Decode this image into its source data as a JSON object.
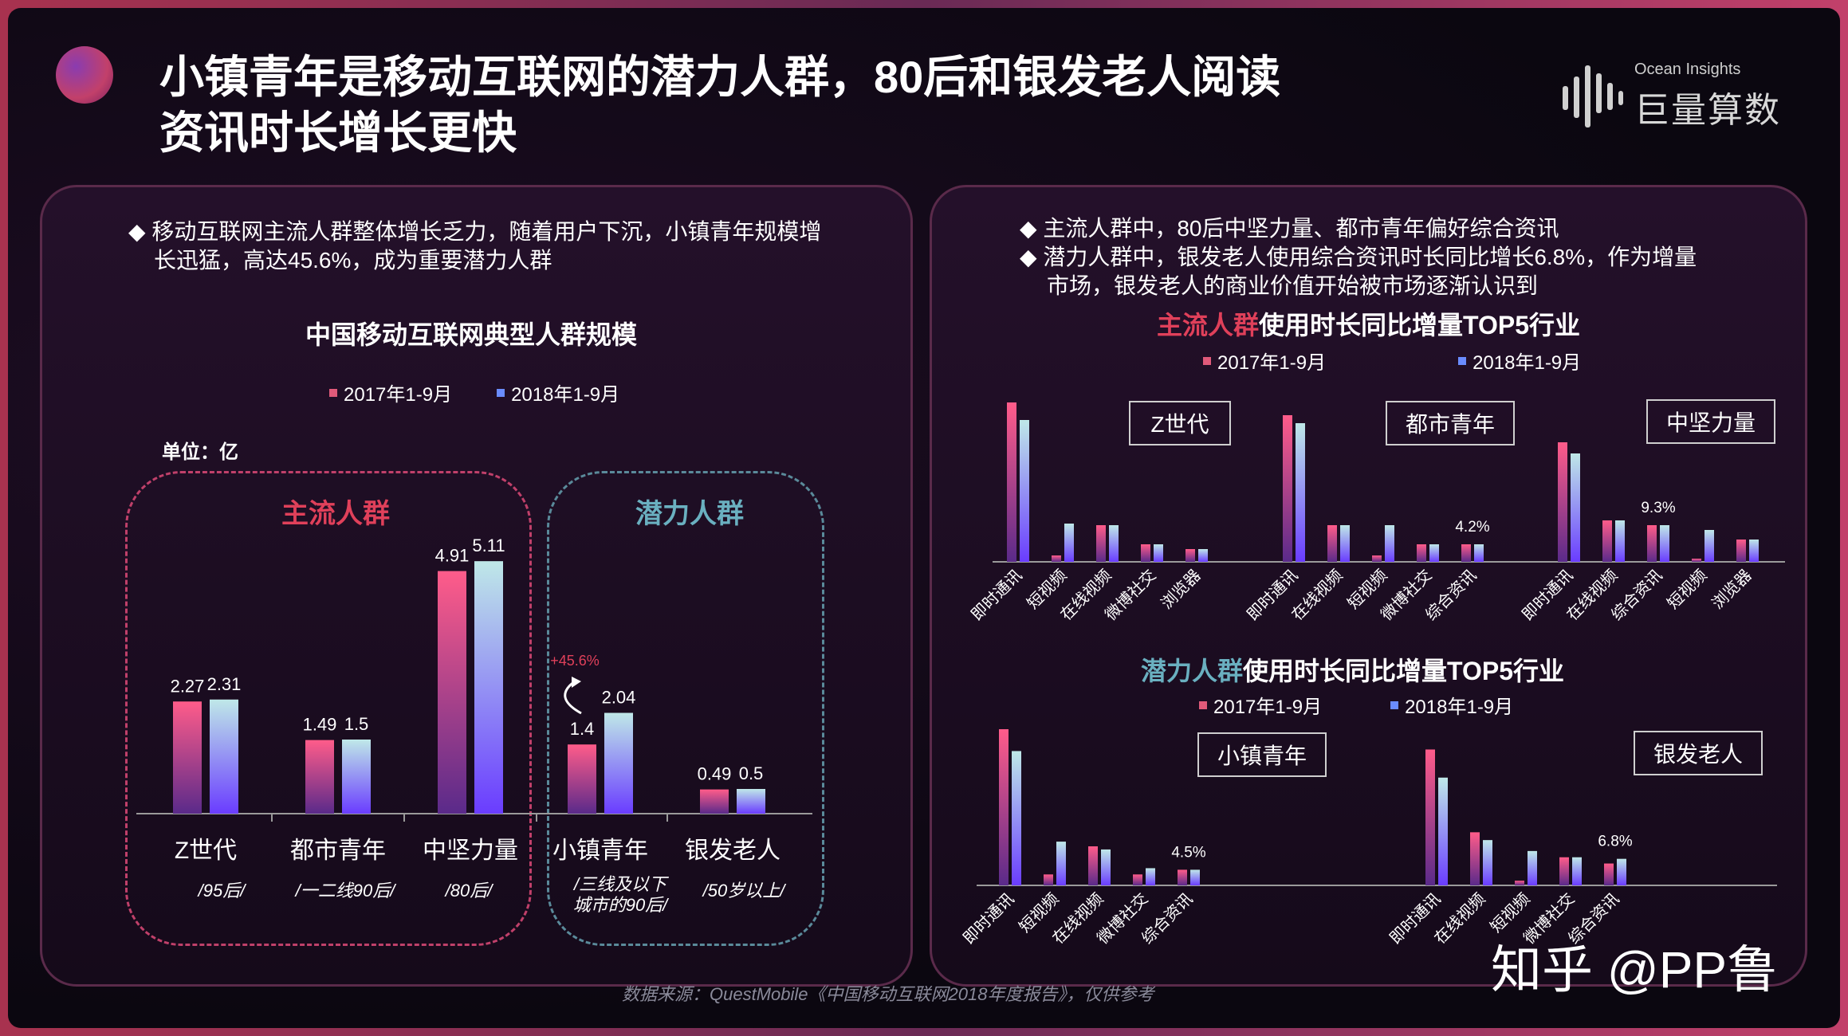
{
  "header": {
    "title_line1": "小镇青年是移动互联网的潜力人群，80后和银发老人阅读",
    "title_line2": "资讯时长增长更快",
    "logo_en": "Ocean Insights",
    "logo_cn": "巨量算数",
    "accent": "#e0405a"
  },
  "left": {
    "bullet_line1": "◆ 移动互联网主流人群整体增长乏力，随着用户下沉，小镇青年规模增",
    "bullet_line2": "长迅猛，高达45.6%，成为重要潜力人群",
    "chart_title": "中国移动互联网典型人群规模",
    "legend_a": "2017年1-9月",
    "legend_b": "2018年1-9月",
    "unit": "单位：亿",
    "group_main": "主流人群",
    "group_potential": "潜力人群",
    "growth_note": "+45.6%",
    "subs": [
      "/95后/",
      "/一二线90后/",
      "/80后/",
      "/三线及以下",
      "城市的90后/",
      "/50岁以上/"
    ]
  },
  "right": {
    "bullet_line1": "◆ 主流人群中，80后中坚力量、都市青年偏好综合资讯",
    "bullet_line2": "◆ 潜力人群中，银发老人使用综合资讯时长同比增长6.8%，作为增量",
    "bullet_line3": "市场，银发老人的商业价值开始被市场逐渐认识到",
    "top_title_hl": "主流人群",
    "top_title_rest": "使用时长同比增量TOP5行业",
    "bottom_title_hl": "潜力人群",
    "bottom_title_rest": "使用时长同比增量TOP5行业",
    "legend_a": "2017年1-9月",
    "legend_b": "2018年1-9月"
  },
  "footer": {
    "source": "数据来源：QuestMobile《中国移动互联网2018年度报告》，仅供参考",
    "watermark": "知乎 @PP鲁"
  },
  "chart_data": [
    {
      "type": "bar",
      "title": "中国移动互联网典型人群规模",
      "ylabel": "单位：亿",
      "categories": [
        "Z世代",
        "都市青年",
        "中坚力量",
        "小镇青年",
        "银发老人"
      ],
      "series": [
        {
          "name": "2017年1-9月",
          "values": [
            2.27,
            1.49,
            4.91,
            1.4,
            0.49
          ]
        },
        {
          "name": "2018年1-9月",
          "values": [
            2.31,
            1.5,
            5.11,
            2.04,
            0.5
          ]
        }
      ],
      "annotations": [
        {
          "category": "小镇青年",
          "text": "+45.6%"
        }
      ],
      "legend": "top-center",
      "grid": false
    },
    {
      "type": "bar",
      "title": "主流人群使用时长同比增量TOP5行业",
      "legend": "top-center",
      "groups": [
        {
          "name": "Z世代",
          "categories": [
            "即时通讯",
            "短视频",
            "在线视频",
            "微博社交",
            "浏览器"
          ],
          "series": [
            {
              "name": "2017年1-9月",
              "values": [
                100,
                4,
                23,
                11,
                8
              ]
            },
            {
              "name": "2018年1-9月",
              "values": [
                89,
                24,
                23,
                11,
                8
              ]
            }
          ]
        },
        {
          "name": "都市青年",
          "categories": [
            "即时通讯",
            "在线视频",
            "短视频",
            "微博社交",
            "综合资讯"
          ],
          "series": [
            {
              "name": "2017年1-9月",
              "values": [
                92,
                23,
                4,
                11,
                11
              ]
            },
            {
              "name": "2018年1-9月",
              "values": [
                87,
                23,
                23,
                11,
                11
              ]
            }
          ],
          "annotations": [
            {
              "category": "综合资讯",
              "text": "4.2%"
            }
          ]
        },
        {
          "name": "中坚力量",
          "categories": [
            "即时通讯",
            "在线视频",
            "综合资讯",
            "短视频",
            "浏览器"
          ],
          "series": [
            {
              "name": "2017年1-9月",
              "values": [
                75,
                26,
                23,
                2,
                14
              ]
            },
            {
              "name": "2018年1-9月",
              "values": [
                68,
                26,
                23,
                20,
                14
              ]
            }
          ],
          "annotations": [
            {
              "category": "综合资讯",
              "text": "9.3%"
            }
          ]
        }
      ]
    },
    {
      "type": "bar",
      "title": "潜力人群使用时长同比增量TOP5行业",
      "legend": "top-center",
      "groups": [
        {
          "name": "小镇青年",
          "categories": [
            "即时通讯",
            "短视频",
            "在线视频",
            "微博社交",
            "综合资讯"
          ],
          "series": [
            {
              "name": "2017年1-9月",
              "values": [
                100,
                7,
                25,
                7,
                10
              ]
            },
            {
              "name": "2018年1-9月",
              "values": [
                86,
                28,
                23,
                11,
                10
              ]
            }
          ],
          "annotations": [
            {
              "category": "综合资讯",
              "text": "4.5%"
            }
          ]
        },
        {
          "name": "银发老人",
          "categories": [
            "即时通讯",
            "在线视频",
            "短视频",
            "微博社交",
            "综合资讯"
          ],
          "series": [
            {
              "name": "2017年1-9月",
              "values": [
                87,
                34,
                3,
                18,
                14
              ]
            },
            {
              "name": "2018年1-9月",
              "values": [
                69,
                29,
                22,
                18,
                17
              ]
            }
          ],
          "annotations": [
            {
              "category": "综合资讯",
              "text": "6.8%"
            }
          ]
        }
      ]
    }
  ]
}
